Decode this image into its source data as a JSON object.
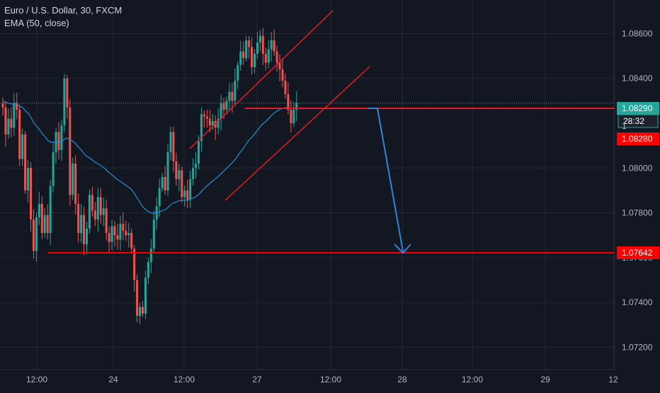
{
  "legend": {
    "title": "Euro / U.S. Dollar, 30, FXCM",
    "indicator": "EMA (50, close)"
  },
  "colors": {
    "background": "#131722",
    "grid": "#242733",
    "up": "#26a69a",
    "down": "#ef5350",
    "ema": "#2a8ccf",
    "drawing_red": "#e31b23",
    "arrow_blue": "#2f86d9",
    "current_price": "#26a69a",
    "level_red": "#ff0000"
  },
  "chart_data": {
    "type": "candlestick",
    "symbol": "Euro / U.S. Dollar",
    "timeframe": "30",
    "source": "FXCM",
    "ylim": [
      1.071,
      1.0875
    ],
    "y_ticks": [
      "1.08600",
      "1.08400",
      "1.08000",
      "1.07800",
      "1.07600",
      "1.07400",
      "1.07200"
    ],
    "x_ticks": [
      "12:00",
      "24",
      "12:00",
      "27",
      "12:00",
      "28",
      "12:00",
      "29",
      "12"
    ],
    "price_tags": [
      {
        "label": "1.08290",
        "value": 1.0829,
        "style": "current"
      },
      {
        "label": "28:32",
        "value": 1.0823,
        "style": "countdown"
      },
      {
        "label": "1.08280",
        "value": 1.0815,
        "style": "red",
        "prefix": "1"
      },
      {
        "label": "1.07642",
        "value": 1.07642,
        "style": "red"
      }
    ],
    "closes": [
      1.0827,
      1.0815,
      1.0822,
      1.0818,
      1.0829,
      1.0826,
      1.0804,
      1.0815,
      1.079,
      1.08,
      1.0777,
      1.0763,
      1.0778,
      1.0784,
      1.0771,
      1.0779,
      1.0771,
      1.0792,
      1.0807,
      1.0816,
      1.0808,
      1.0819,
      1.084,
      1.0827,
      1.0788,
      1.0802,
      1.0784,
      1.0771,
      1.0779,
      1.0766,
      1.0773,
      1.0788,
      1.0781,
      1.0777,
      1.0787,
      1.0779,
      1.0782,
      1.0771,
      1.0767,
      1.0774,
      1.077,
      1.0768,
      1.0775,
      1.0772,
      1.077,
      1.0771,
      1.0764,
      1.075,
      1.0734,
      1.0738,
      1.0735,
      1.0751,
      1.0758,
      1.0764,
      1.0777,
      1.0783,
      1.0791,
      1.0796,
      1.079,
      1.0807,
      1.0816,
      1.0803,
      1.0795,
      1.0799,
      1.0787,
      1.079,
      1.0786,
      1.0795,
      1.08,
      1.0802,
      1.0812,
      1.0824,
      1.0823,
      1.0822,
      1.0819,
      1.0821,
      1.0818,
      1.0822,
      1.0829,
      1.0826,
      1.083,
      1.0834,
      1.083,
      1.0839,
      1.0846,
      1.0852,
      1.0849,
      1.0857,
      1.0854,
      1.0845,
      1.0851,
      1.0856,
      1.0859,
      1.0851,
      1.0847,
      1.0853,
      1.0857,
      1.0852,
      1.0847,
      1.0844,
      1.0839,
      1.0833,
      1.0826,
      1.082,
      1.0826,
      1.0829
    ],
    "ema_period": 50,
    "drawings": [
      {
        "type": "channel_line",
        "points": [
          [
            1.0815,
            1.0857
          ],
          "rising upper"
        ]
      },
      {
        "type": "horizontal_level",
        "value": 1.0829
      },
      {
        "type": "horizontal_level",
        "value": 1.07642
      },
      {
        "type": "arrow_projection",
        "from": 1.0829,
        "to": 1.07642
      }
    ]
  }
}
